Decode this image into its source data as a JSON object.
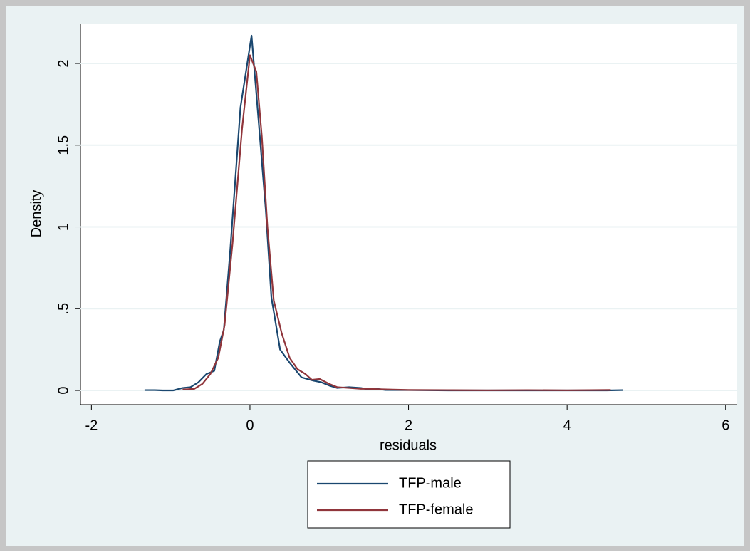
{
  "chart_data": {
    "type": "line",
    "x_label": "residuals",
    "y_label": "Density",
    "xlim": [
      -2.138,
      6.146
    ],
    "ylim": [
      -0.087,
      2.244
    ],
    "xticks": [
      -2,
      0,
      2,
      4,
      6
    ],
    "yticks": [
      0,
      {
        "value": 0.5,
        "label": ".5"
      },
      1,
      1.5,
      2
    ],
    "grid": true,
    "legend_position": "bottom",
    "series": [
      {
        "name": "TFP-male",
        "color": "#1a476f",
        "x": [
          -1.33,
          -1.2,
          -1.1,
          -0.97,
          -0.85,
          -0.75,
          -0.65,
          -0.55,
          -0.45,
          -0.38,
          -0.33,
          -0.25,
          -0.12,
          0.02,
          0.1,
          0.2,
          0.27,
          0.38,
          0.5,
          0.65,
          0.8,
          0.9,
          1.0,
          1.1,
          1.25,
          1.4,
          1.5,
          1.6,
          1.7,
          2.0,
          2.5,
          3.0,
          3.5,
          4.0,
          4.5,
          4.7
        ],
        "values": [
          0.002,
          0.002,
          0,
          0,
          0.015,
          0.02,
          0.05,
          0.1,
          0.12,
          0.3,
          0.37,
          0.85,
          1.73,
          2.17,
          1.7,
          1.1,
          0.57,
          0.25,
          0.17,
          0.08,
          0.06,
          0.05,
          0.03,
          0.015,
          0.02,
          0.015,
          0.005,
          0.01,
          0.003,
          0.002,
          0,
          0,
          0,
          0,
          0,
          0.002
        ]
      },
      {
        "name": "TFP-female",
        "color": "#90353b",
        "x": [
          -0.85,
          -0.7,
          -0.6,
          -0.5,
          -0.4,
          -0.32,
          -0.22,
          -0.1,
          0.0,
          0.08,
          0.15,
          0.22,
          0.3,
          0.4,
          0.5,
          0.6,
          0.7,
          0.78,
          0.88,
          1.0,
          1.1,
          1.25,
          1.4,
          1.5,
          1.6,
          1.8,
          2.0,
          2.5,
          3.0,
          3.5,
          4.0,
          4.55
        ],
        "values": [
          0.005,
          0.01,
          0.04,
          0.1,
          0.2,
          0.4,
          0.9,
          1.6,
          2.05,
          1.95,
          1.55,
          1.0,
          0.55,
          0.35,
          0.2,
          0.13,
          0.1,
          0.065,
          0.07,
          0.04,
          0.02,
          0.015,
          0.01,
          0.01,
          0.008,
          0.005,
          0.003,
          0.002,
          0.001,
          0.002,
          0.001,
          0.003
        ]
      }
    ]
  }
}
